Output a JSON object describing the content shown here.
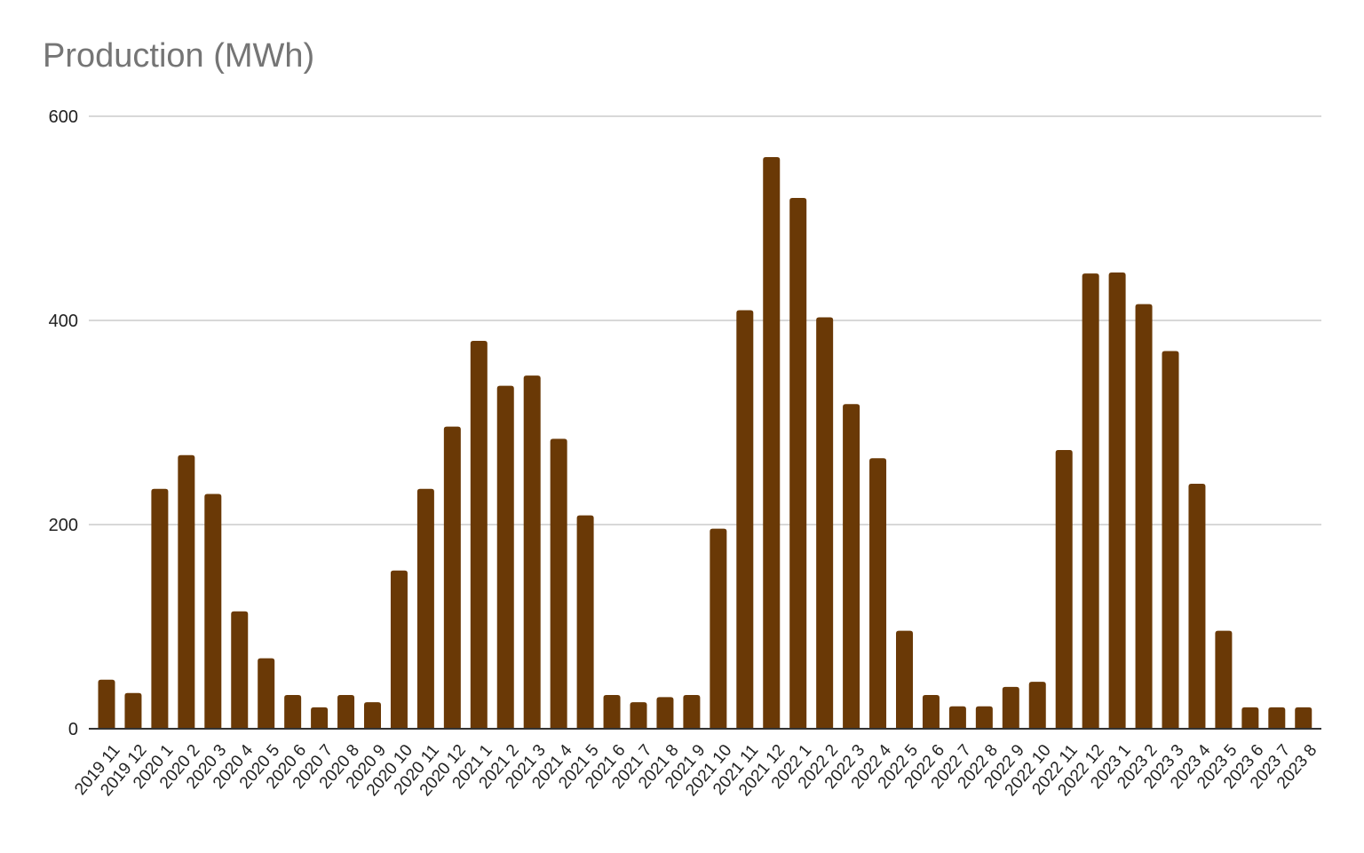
{
  "chart_data": {
    "type": "bar",
    "title": "Production (MWh)",
    "xlabel": "",
    "ylabel": "",
    "ylim": [
      0,
      600
    ],
    "yticks": [
      0,
      200,
      400,
      600
    ],
    "grid": true,
    "legend": "none",
    "bar_color": "#6a3906",
    "categories": [
      "2019 11",
      "2019 12",
      "2020 1",
      "2020 2",
      "2020 3",
      "2020 4",
      "2020 5",
      "2020 6",
      "2020 7",
      "2020 8",
      "2020 9",
      "2020 10",
      "2020 11",
      "2020 12",
      "2021 1",
      "2021 2",
      "2021 3",
      "2021 4",
      "2021 5",
      "2021 6",
      "2021 7",
      "2021 8",
      "2021 9",
      "2021 10",
      "2021 11",
      "2021 12",
      "2022 1",
      "2022 2",
      "2022 3",
      "2022 4",
      "2022 5",
      "2022 6",
      "2022 7",
      "2022 8",
      "2022 9",
      "2022 10",
      "2022 11",
      "2022 12",
      "2023 1",
      "2023 2",
      "2023 3",
      "2023 4",
      "2023 5",
      "2023 6",
      "2023 7",
      "2023 8"
    ],
    "values": [
      48,
      35,
      235,
      268,
      230,
      115,
      69,
      33,
      21,
      33,
      26,
      155,
      235,
      296,
      380,
      336,
      346,
      284,
      209,
      33,
      26,
      31,
      33,
      196,
      410,
      560,
      520,
      403,
      318,
      265,
      96,
      33,
      22,
      22,
      41,
      46,
      273,
      446,
      447,
      416,
      370,
      240,
      96,
      21,
      21,
      21
    ]
  }
}
